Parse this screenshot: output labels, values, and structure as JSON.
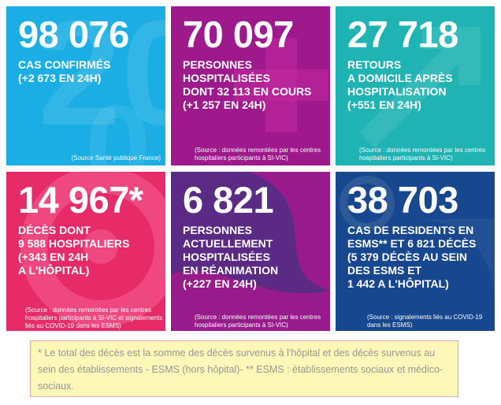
{
  "colors": {
    "confirmed": "#1aaee4",
    "hospitalized": "#9e1a8c",
    "returns": "#1fb3b3",
    "deaths": "#e72a68",
    "icu": "#5b2a84",
    "esms": "#17478e",
    "footnote_bg": "#fdf8b8",
    "footnote_border": "#e9a6a8",
    "footnote_text": "#969696"
  },
  "tiles": [
    {
      "id": "confirmed",
      "number": "98 076",
      "lines": [
        "CAS CONFIRMÉS",
        "(+2 673 EN 24H)"
      ],
      "source_lines": [
        "(Source Santé publique France)"
      ]
    },
    {
      "id": "hospitalized",
      "number": "70 097",
      "lines": [
        "PERSONNES",
        "HOSPITALISÉES",
        "DONT 32 113 EN COURS",
        "(+1 257 EN 24H)"
      ],
      "source_lines": [
        "(Source : données remontées par les centres",
        "hospitaliers participants à SI-VIC)"
      ]
    },
    {
      "id": "returns",
      "number": "27 718",
      "lines": [
        "RETOURS",
        "A DOMICILE APRÈS",
        "HOSPITALISATION",
        "(+551 EN 24H)"
      ],
      "source_lines": [
        "(Source : données remontées par les centres",
        "hospitaliers participants à SI-VIC)"
      ]
    },
    {
      "id": "deaths",
      "number": "14 967*",
      "lines": [
        "DÉCÈS DONT",
        "9 588 HOSPITALIERS",
        "(+343 EN 24H",
        "A L'HÔPITAL)"
      ],
      "source_lines": [
        "(Source : données remontées par les centres",
        "hospitaliers participants à SI-VIC et signalements",
        "liés au COVID-19 dans les ESMS)"
      ]
    },
    {
      "id": "icu",
      "number": "6 821",
      "lines": [
        "PERSONNES",
        "ACTUELLEMENT",
        "HOSPITALISÉES",
        "EN RÉANIMATION",
        "(+227 EN 24H)"
      ],
      "source_lines": [
        "(Source : données remontées par les centres",
        "hospitaliers participants à SI-VIC)"
      ]
    },
    {
      "id": "esms",
      "number": "38 703",
      "lines": [
        "CAS DE RESIDENTS EN",
        "ESMS** ET 6 821 DÉCÈS",
        "(5 379 DÉCÈS AU SEIN",
        "DES ESMS ET",
        "1 442 A L'HÔPITAL)"
      ],
      "source_lines": [
        "(Source : signalements liés au COVID-19",
        "dans les ESMS)"
      ]
    }
  ],
  "footnote": "* Le total des décès est la somme des décès survenus à l'hôpital et des décès survenus au sein des établissements - ESMS (hors hôpital)- ** ESMS : établissements sociaux et médico-sociaux."
}
